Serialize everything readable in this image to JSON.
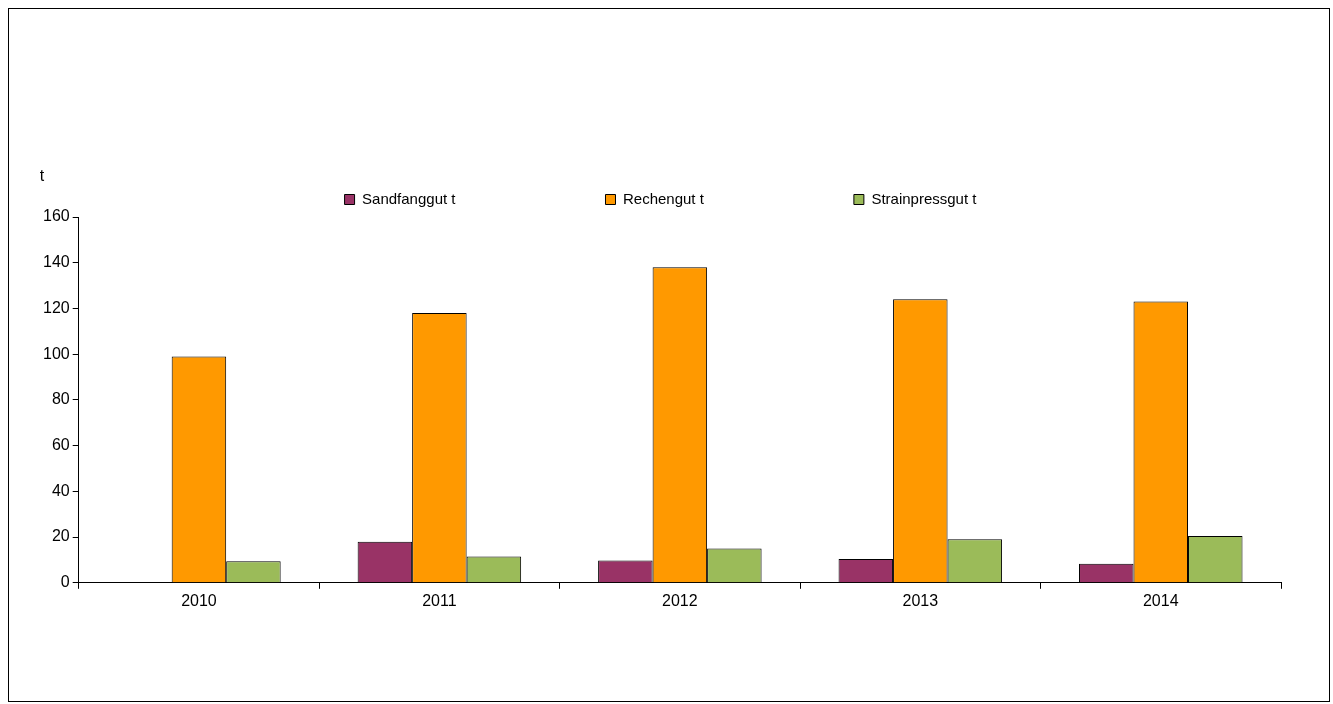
{
  "chart_data": {
    "type": "bar",
    "ylabel": "t",
    "categories": [
      "2010",
      "2011",
      "2012",
      "2013",
      "2014"
    ],
    "series": [
      {
        "name": "Sandfanggut t",
        "color": "#993366",
        "values": [
          null,
          18,
          9.7,
          10.4,
          8.3
        ]
      },
      {
        "name": "Rechengut t",
        "color": "#ff9900",
        "values": [
          99,
          118,
          138,
          124,
          123
        ]
      },
      {
        "name": "Strainpressgut t",
        "color": "#9bbb59",
        "values": [
          9.4,
          11.5,
          15,
          19.1,
          20.5
        ]
      }
    ],
    "ylim": [
      0,
      160
    ],
    "yticks": [
      0,
      20,
      40,
      60,
      80,
      100,
      120,
      140,
      160
    ],
    "grid": false,
    "legend": "top"
  }
}
